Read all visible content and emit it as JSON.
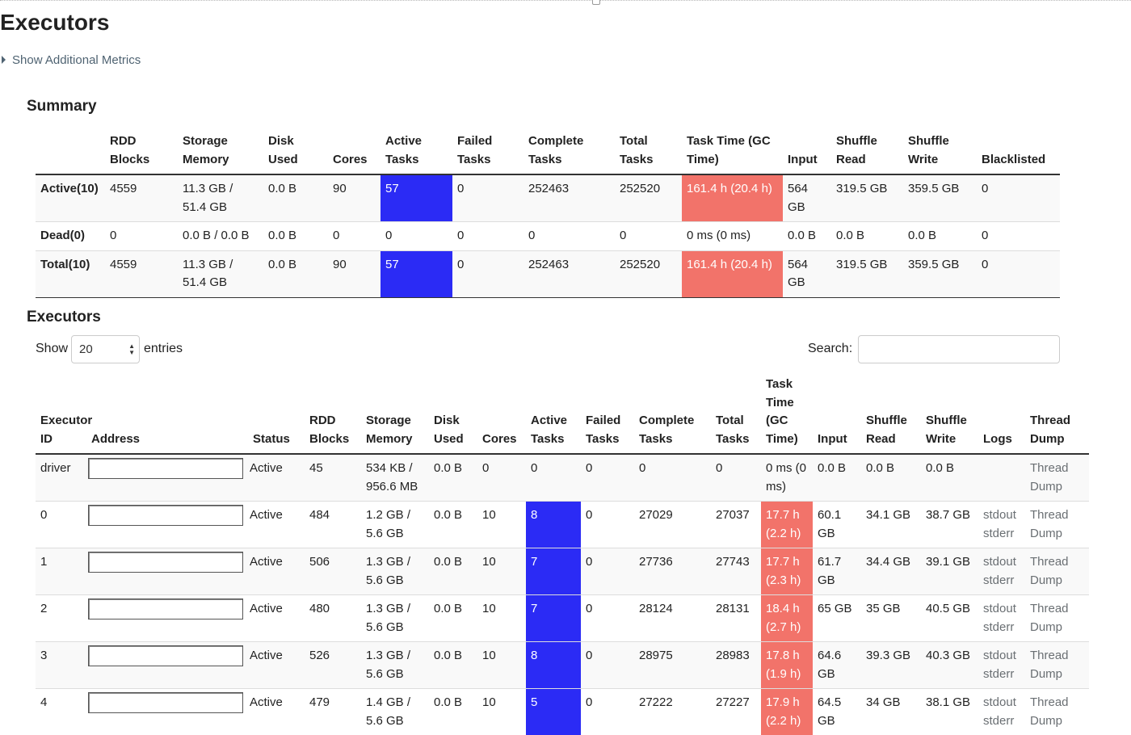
{
  "page": {
    "title": "Executors",
    "toggle_label": "Show Additional Metrics"
  },
  "summary": {
    "title": "Summary",
    "headers": [
      "",
      "RDD Blocks",
      "Storage Memory",
      "Disk Used",
      "Cores",
      "Active Tasks",
      "Failed Tasks",
      "Complete Tasks",
      "Total Tasks",
      "Task Time (GC Time)",
      "Input",
      "Shuffle Read",
      "Shuffle Write",
      "Blacklisted"
    ],
    "rows": [
      [
        "Active(10)",
        "4559",
        "11.3 GB / 51.4 GB",
        "0.0 B",
        "90",
        "57",
        "0",
        "252463",
        "252520",
        "161.4 h (20.4 h)",
        "564 GB",
        "319.5 GB",
        "359.5 GB",
        "0"
      ],
      [
        "Dead(0)",
        "0",
        "0.0 B / 0.0 B",
        "0.0 B",
        "0",
        "0",
        "0",
        "0",
        "0",
        "0 ms (0 ms)",
        "0.0 B",
        "0.0 B",
        "0.0 B",
        "0"
      ],
      [
        "Total(10)",
        "4559",
        "11.3 GB / 51.4 GB",
        "0.0 B",
        "90",
        "57",
        "0",
        "252463",
        "252520",
        "161.4 h (20.4 h)",
        "564 GB",
        "319.5 GB",
        "359.5 GB",
        "0"
      ]
    ]
  },
  "executors": {
    "title": "Executors",
    "show_label": "Show",
    "page_size": "20",
    "entries_label": "entries",
    "search_label": "Search:",
    "search_value": "",
    "headers": [
      "Executor ID",
      "Address",
      "Status",
      "RDD Blocks",
      "Storage Memory",
      "Disk Used",
      "Cores",
      "Active Tasks",
      "Failed Tasks",
      "Complete Tasks",
      "Total Tasks",
      "Task Time (GC Time)",
      "Input",
      "Shuffle Read",
      "Shuffle Write",
      "Logs",
      "Thread Dump"
    ],
    "rows": [
      {
        "id": "driver",
        "address": "",
        "status": "Active",
        "rdd_blocks": "45",
        "storage_memory": "534 KB / 956.6 MB",
        "disk_used": "0.0 B",
        "cores": "0",
        "active_tasks": "0",
        "failed_tasks": "0",
        "complete_tasks": "0",
        "total_tasks": "0",
        "task_time": "0 ms (0 ms)",
        "input": "0.0 B",
        "shuffle_read": "0.0 B",
        "shuffle_write": "0.0 B",
        "logs": [],
        "thread_dump": "Thread Dump"
      },
      {
        "id": "0",
        "address": "",
        "status": "Active",
        "rdd_blocks": "484",
        "storage_memory": "1.2 GB / 5.6 GB",
        "disk_used": "0.0 B",
        "cores": "10",
        "active_tasks": "8",
        "failed_tasks": "0",
        "complete_tasks": "27029",
        "total_tasks": "27037",
        "task_time": "17.7 h (2.2 h)",
        "input": "60.1 GB",
        "shuffle_read": "34.1 GB",
        "shuffle_write": "38.7 GB",
        "logs": [
          "stdout",
          "stderr"
        ],
        "thread_dump": "Thread Dump"
      },
      {
        "id": "1",
        "address": "",
        "status": "Active",
        "rdd_blocks": "506",
        "storage_memory": "1.3 GB / 5.6 GB",
        "disk_used": "0.0 B",
        "cores": "10",
        "active_tasks": "7",
        "failed_tasks": "0",
        "complete_tasks": "27736",
        "total_tasks": "27743",
        "task_time": "17.7 h (2.3 h)",
        "input": "61.7 GB",
        "shuffle_read": "34.4 GB",
        "shuffle_write": "39.1 GB",
        "logs": [
          "stdout",
          "stderr"
        ],
        "thread_dump": "Thread Dump"
      },
      {
        "id": "2",
        "address": "",
        "status": "Active",
        "rdd_blocks": "480",
        "storage_memory": "1.3 GB / 5.6 GB",
        "disk_used": "0.0 B",
        "cores": "10",
        "active_tasks": "7",
        "failed_tasks": "0",
        "complete_tasks": "28124",
        "total_tasks": "28131",
        "task_time": "18.4 h (2.7 h)",
        "input": "65 GB",
        "shuffle_read": "35 GB",
        "shuffle_write": "40.5 GB",
        "logs": [
          "stdout",
          "stderr"
        ],
        "thread_dump": "Thread Dump"
      },
      {
        "id": "3",
        "address": "",
        "status": "Active",
        "rdd_blocks": "526",
        "storage_memory": "1.3 GB / 5.6 GB",
        "disk_used": "0.0 B",
        "cores": "10",
        "active_tasks": "8",
        "failed_tasks": "0",
        "complete_tasks": "28975",
        "total_tasks": "28983",
        "task_time": "17.8 h (1.9 h)",
        "input": "64.6 GB",
        "shuffle_read": "39.3 GB",
        "shuffle_write": "40.3 GB",
        "logs": [
          "stdout",
          "stderr"
        ],
        "thread_dump": "Thread Dump"
      },
      {
        "id": "4",
        "address": "",
        "status": "Active",
        "rdd_blocks": "479",
        "storage_memory": "1.4 GB / 5.6 GB",
        "disk_used": "0.0 B",
        "cores": "10",
        "active_tasks": "5",
        "failed_tasks": "0",
        "complete_tasks": "27222",
        "total_tasks": "27227",
        "task_time": "17.9 h (2.2 h)",
        "input": "64.5 GB",
        "shuffle_read": "34 GB",
        "shuffle_write": "38.1 GB",
        "logs": [
          "stdout",
          "stderr"
        ],
        "thread_dump": "Thread Dump"
      }
    ]
  },
  "colors": {
    "active_tasks_highlight": "#2b2bf5",
    "task_time_highlight": "#f2736a",
    "link_muted": "#6a6f73"
  }
}
